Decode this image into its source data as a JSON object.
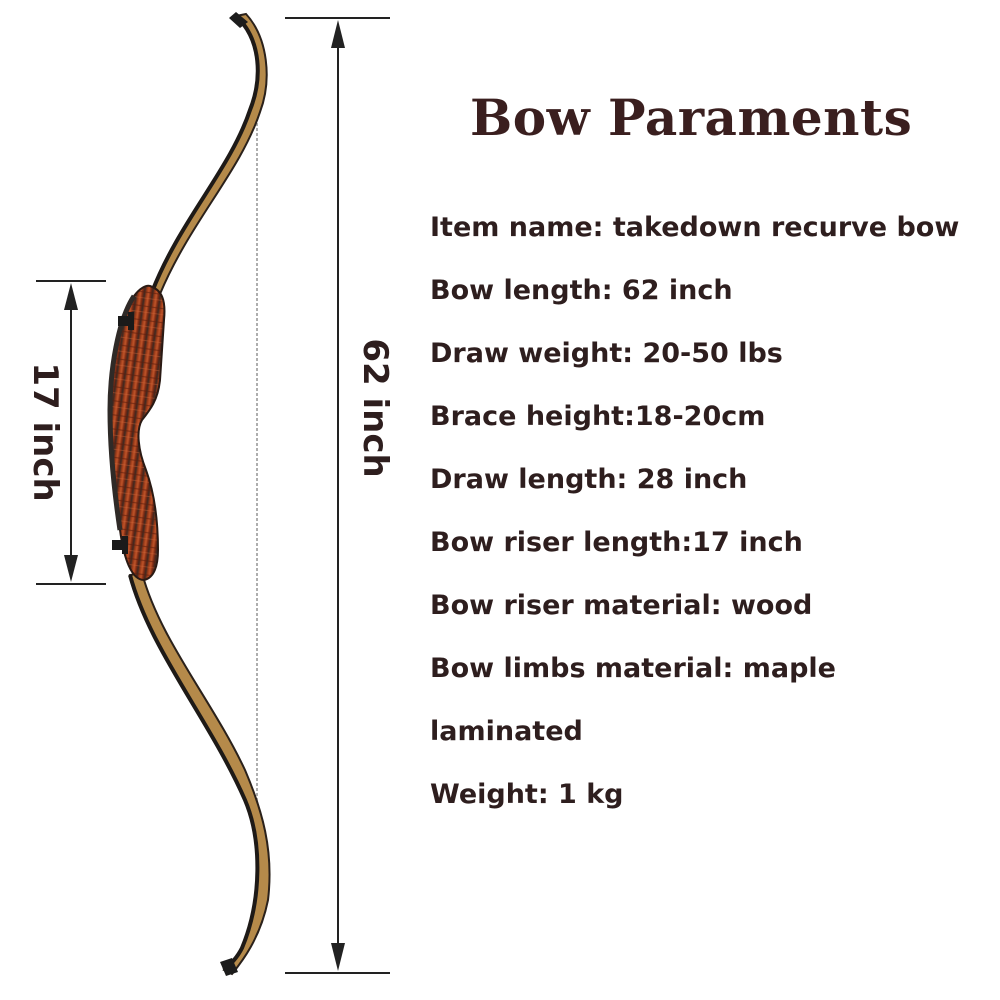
{
  "title": "Bow Paraments",
  "specs": [
    "Item name: takedown recurve bow",
    "Bow length: 62 inch",
    "Draw weight: 20-50 lbs",
    "Brace height:18-20cm",
    "Draw length: 28 inch",
    "Bow riser length:17 inch",
    "Bow riser material: wood",
    "Bow limbs material: maple",
    "laminated",
    "Weight: 1 kg"
  ],
  "dimensions": {
    "bow_length_label": "62 inch",
    "riser_length_label": "17 inch"
  },
  "colors": {
    "text": "#2e1e1e",
    "title": "#3a1f1f",
    "riser_wood": "#8a2f14",
    "limb_wood": "#b58a4a",
    "limb_tip": "#1c1c1c"
  }
}
